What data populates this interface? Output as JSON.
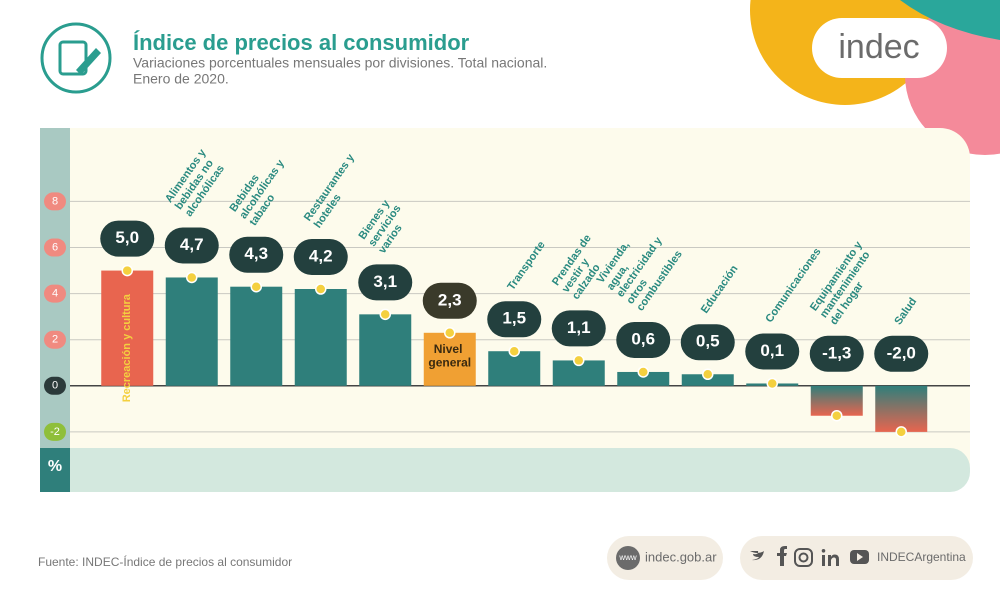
{
  "header": {
    "title": "Índice de precios al consumidor",
    "subtitle": "Variaciones porcentuales mensuales por divisiones. Total nacional.",
    "period": "Enero de 2020.",
    "logo": "indec"
  },
  "chart_data": {
    "type": "bar",
    "categories": [
      "Recreación y cultura",
      "Alimentos y bebidas no alcohólicas",
      "Bebidas alcohólicas y tabaco",
      "Restaurantes y hoteles",
      "Bienes y servicios varios",
      "Nivel general",
      "Transporte",
      "Prendas de vestir y calzado",
      "Vivienda, agua, electricidad y otros combustibles",
      "Educación",
      "Comunicaciones",
      "Equipamiento y mantenimiento del hogar",
      "Salud"
    ],
    "values": [
      5.0,
      4.7,
      4.3,
      4.2,
      3.1,
      2.3,
      1.5,
      1.1,
      0.6,
      0.5,
      0.1,
      -1.3,
      -2.0
    ],
    "value_labels": [
      "5,0",
      "4,7",
      "4,3",
      "4,2",
      "3,1",
      "2,3",
      "1,5",
      "1,1",
      "0,6",
      "0,5",
      "0,1",
      "-1,3",
      "-2,0"
    ],
    "colors": [
      "#e8654f",
      "#2f7f7b",
      "#2f7f7b",
      "#2f7f7b",
      "#2f7f7b",
      "#f0a033",
      "#2f7f7b",
      "#2f7f7b",
      "#2f7f7b",
      "#2f7f7b",
      "#2f7f7b",
      "#2f7f7b",
      "#2f7f7b"
    ],
    "ylim": [
      -2.7,
      11.1
    ],
    "yticks": [
      -2,
      0,
      2,
      4,
      6,
      8
    ],
    "y_label": "%",
    "grid": true
  },
  "footer": {
    "source": "Fuente: INDEC-Índice de precios al consumidor",
    "web_icon": "www",
    "web": "indec.gob.ar",
    "social": "INDECArgentina"
  }
}
